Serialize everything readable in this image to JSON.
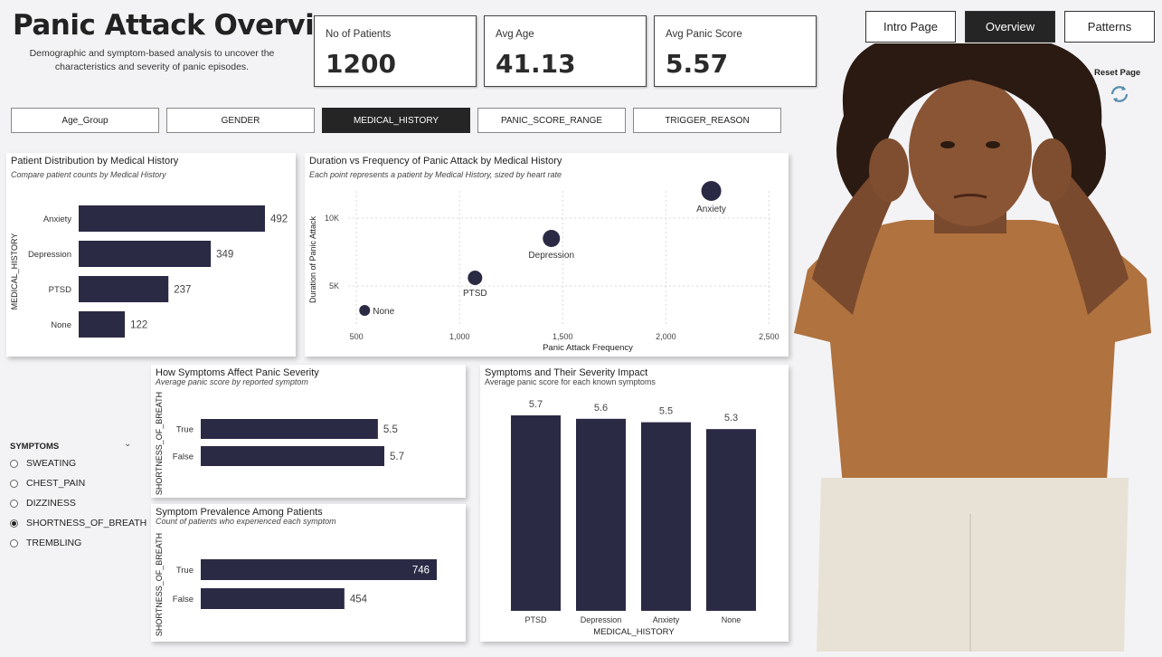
{
  "header": {
    "title": "Panic Attack Overview",
    "subtitle": "Demographic and symptom-based analysis to uncover the characteristics and severity of panic episodes."
  },
  "kpis": [
    {
      "label": "No of Patients",
      "value": "1200"
    },
    {
      "label": "Avg Age",
      "value": "41.13"
    },
    {
      "label": "Avg Panic Score",
      "value": "5.57"
    }
  ],
  "nav": {
    "intro": "Intro Page",
    "overview": "Overview",
    "patterns": "Patterns",
    "active": "Overview"
  },
  "reset": {
    "label": "Reset Page"
  },
  "filters": [
    {
      "label": "Age_Group",
      "active": false
    },
    {
      "label": "GENDER",
      "active": false
    },
    {
      "label": "MEDICAL_HISTORY",
      "active": true
    },
    {
      "label": "PANIC_SCORE_RANGE",
      "active": false
    },
    {
      "label": "TRIGGER_REASON",
      "active": false
    }
  ],
  "slicer": {
    "title": "SYMPTOMS",
    "items": [
      {
        "label": "SWEATING",
        "checked": false
      },
      {
        "label": "CHEST_PAIN",
        "checked": false
      },
      {
        "label": "DIZZINESS",
        "checked": false
      },
      {
        "label": "SHORTNESS_OF_BREATH",
        "checked": true
      },
      {
        "label": "TREMBLING",
        "checked": false
      }
    ]
  },
  "colors": {
    "bar": "#2b2a45",
    "grid": "#d8d8d8"
  },
  "panels": {
    "dist": {
      "title": "Patient Distribution by Medical History",
      "subtitle": "Compare patient counts by Medical History"
    },
    "scatter": {
      "title": "Duration vs Frequency of Panic Attack by Medical History",
      "subtitle": "Each point represents a patient by Medical History, sized by heart rate"
    },
    "symptoms": {
      "title": "How Symptoms Affect Panic Severity",
      "subtitle": "Average panic score by reported symptom"
    },
    "prevalence": {
      "title": "Symptom Prevalence Among Patients",
      "subtitle": "Count of patients who experienced each symptom"
    },
    "impact": {
      "title": "Symptoms and Their Severity Impact",
      "subtitle": "Average panic score for each known symptoms"
    }
  },
  "chart_data": [
    {
      "id": "dist",
      "type": "bar",
      "orientation": "horizontal",
      "categories": [
        "Anxiety",
        "Depression",
        "PTSD",
        "None"
      ],
      "values": [
        492,
        349,
        237,
        122
      ],
      "ylabel": "MEDICAL_HISTORY"
    },
    {
      "id": "scatter",
      "type": "scatter",
      "points": [
        {
          "label": "Anxiety",
          "x": 2220,
          "y": 12000
        },
        {
          "label": "Depression",
          "x": 1445,
          "y": 8500
        },
        {
          "label": "PTSD",
          "x": 1075,
          "y": 5600
        },
        {
          "label": "None",
          "x": 540,
          "y": 3200
        }
      ],
      "xlabel": "Panic Attack Frequency",
      "ylabel": "Duration of Panic Attack",
      "xticks": [
        "500",
        "1,000",
        "1,500",
        "2,000",
        "2,500"
      ],
      "yticks": [
        "5K",
        "10K"
      ],
      "xlim": [
        460,
        2520
      ],
      "ylim": [
        2000,
        12000
      ]
    },
    {
      "id": "symptoms",
      "type": "bar",
      "orientation": "horizontal",
      "categories": [
        "True",
        "False"
      ],
      "values": [
        5.5,
        5.7
      ],
      "ylabel": "SHORTNESS_OF_BREATH"
    },
    {
      "id": "prevalence",
      "type": "bar",
      "orientation": "horizontal",
      "categories": [
        "True",
        "False"
      ],
      "values": [
        746,
        454
      ],
      "ylabel": "SHORTNESS_OF_BREATH"
    },
    {
      "id": "impact",
      "type": "bar",
      "orientation": "vertical",
      "categories": [
        "PTSD",
        "Depression",
        "Anxiety",
        "None"
      ],
      "values": [
        5.7,
        5.6,
        5.5,
        5.3
      ],
      "xlabel": "MEDICAL_HISTORY"
    }
  ]
}
